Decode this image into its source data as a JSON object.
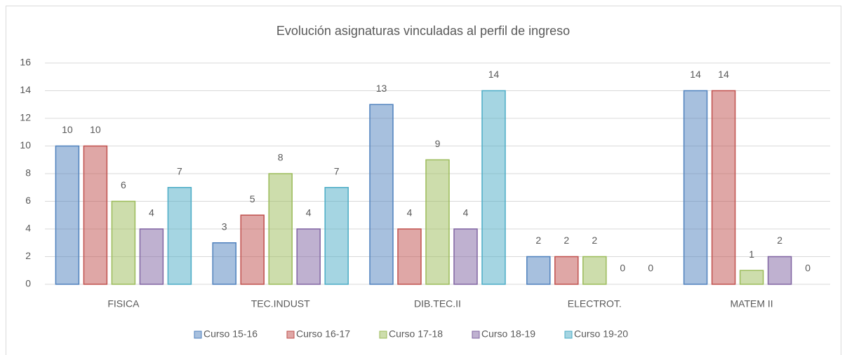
{
  "chart_data": {
    "type": "bar",
    "title": "Evolución asignaturas vinculadas al perfil de ingreso",
    "categories": [
      "FISICA",
      "TEC.INDUST",
      "DIB.TEC.II",
      "ELECTROT.",
      "MATEM II"
    ],
    "series": [
      {
        "name": "Curso 15-16",
        "color": "#4f81bd",
        "values": [
          10,
          3,
          13,
          2,
          14
        ]
      },
      {
        "name": "Curso 16-17",
        "color": "#c0504d",
        "values": [
          10,
          5,
          4,
          2,
          14
        ]
      },
      {
        "name": "Curso 17-18",
        "color": "#9bbb59",
        "values": [
          6,
          8,
          9,
          2,
          1
        ]
      },
      {
        "name": "Curso 18-19",
        "color": "#8064a2",
        "values": [
          4,
          4,
          4,
          0,
          2
        ]
      },
      {
        "name": "Curso 19-20",
        "color": "#4bacc6",
        "values": [
          7,
          7,
          14,
          0,
          0
        ]
      }
    ],
    "ylim": [
      0,
      16
    ],
    "yticks": [
      0,
      2,
      4,
      6,
      8,
      10,
      12,
      14,
      16
    ],
    "grid": true,
    "legend": "bottom"
  }
}
